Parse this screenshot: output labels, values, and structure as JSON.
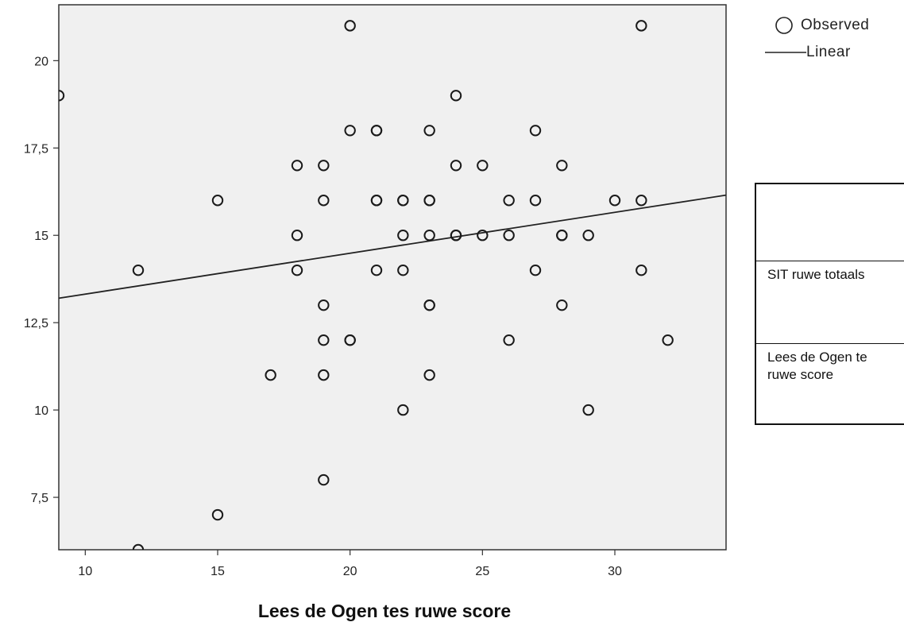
{
  "chart_data": {
    "type": "scatter",
    "xlabel": "Lees de Ogen tes ruwe score",
    "ylabel": "",
    "xlim": [
      9,
      34.2
    ],
    "ylim": [
      6,
      21.6
    ],
    "x_ticks": [
      10,
      15,
      20,
      25,
      30
    ],
    "x_tick_labels": [
      "10",
      "15",
      "20",
      "25",
      "30"
    ],
    "y_ticks": [
      7.5,
      10,
      12.5,
      15,
      17.5,
      20
    ],
    "y_tick_labels": [
      "7,5",
      "10",
      "12,5",
      "15",
      "17,5",
      "20"
    ],
    "grid": false,
    "legend_position": "top-right",
    "legend": [
      {
        "marker": "circle-open",
        "label": "Observed"
      },
      {
        "marker": "line",
        "label": "Linear"
      }
    ],
    "points": [
      [
        9,
        19
      ],
      [
        12,
        14
      ],
      [
        12,
        6
      ],
      [
        15,
        16
      ],
      [
        15,
        7
      ],
      [
        17,
        11
      ],
      [
        18,
        17
      ],
      [
        18,
        15
      ],
      [
        18,
        14
      ],
      [
        19,
        17
      ],
      [
        19,
        16
      ],
      [
        19,
        13
      ],
      [
        19,
        12
      ],
      [
        19,
        11
      ],
      [
        19,
        8
      ],
      [
        20,
        21
      ],
      [
        20,
        18
      ],
      [
        20,
        12
      ],
      [
        20,
        12
      ],
      [
        21,
        18
      ],
      [
        21,
        18
      ],
      [
        21,
        16
      ],
      [
        21,
        16
      ],
      [
        21,
        14
      ],
      [
        22,
        16
      ],
      [
        22,
        16
      ],
      [
        22,
        15
      ],
      [
        22,
        14
      ],
      [
        22,
        10
      ],
      [
        23,
        18
      ],
      [
        23,
        16
      ],
      [
        23,
        16
      ],
      [
        23,
        15
      ],
      [
        23,
        13
      ],
      [
        23,
        13
      ],
      [
        23,
        11
      ],
      [
        24,
        19
      ],
      [
        24,
        17
      ],
      [
        24,
        15
      ],
      [
        24,
        15
      ],
      [
        25,
        17
      ],
      [
        25,
        15
      ],
      [
        26,
        16
      ],
      [
        26,
        15
      ],
      [
        26,
        12
      ],
      [
        27,
        18
      ],
      [
        27,
        16
      ],
      [
        27,
        14
      ],
      [
        28,
        17
      ],
      [
        28,
        15
      ],
      [
        28,
        15
      ],
      [
        28,
        13
      ],
      [
        29,
        15
      ],
      [
        29,
        10
      ],
      [
        30,
        16
      ],
      [
        31,
        21
      ],
      [
        31,
        16
      ],
      [
        31,
        14
      ],
      [
        32,
        12
      ]
    ],
    "fit_line": {
      "x": [
        9,
        34.2
      ],
      "y": [
        13.2,
        16.15
      ]
    },
    "colors": {
      "plot_background": "#f0f0f0",
      "marker": "#1a1a1a",
      "line": "#222222",
      "frame": "#333333"
    }
  },
  "table": {
    "header": "",
    "rows": [
      {
        "label": "SIT ruwe totaals"
      },
      {
        "label": "Lees de Ogen te\nruwe score"
      }
    ]
  }
}
